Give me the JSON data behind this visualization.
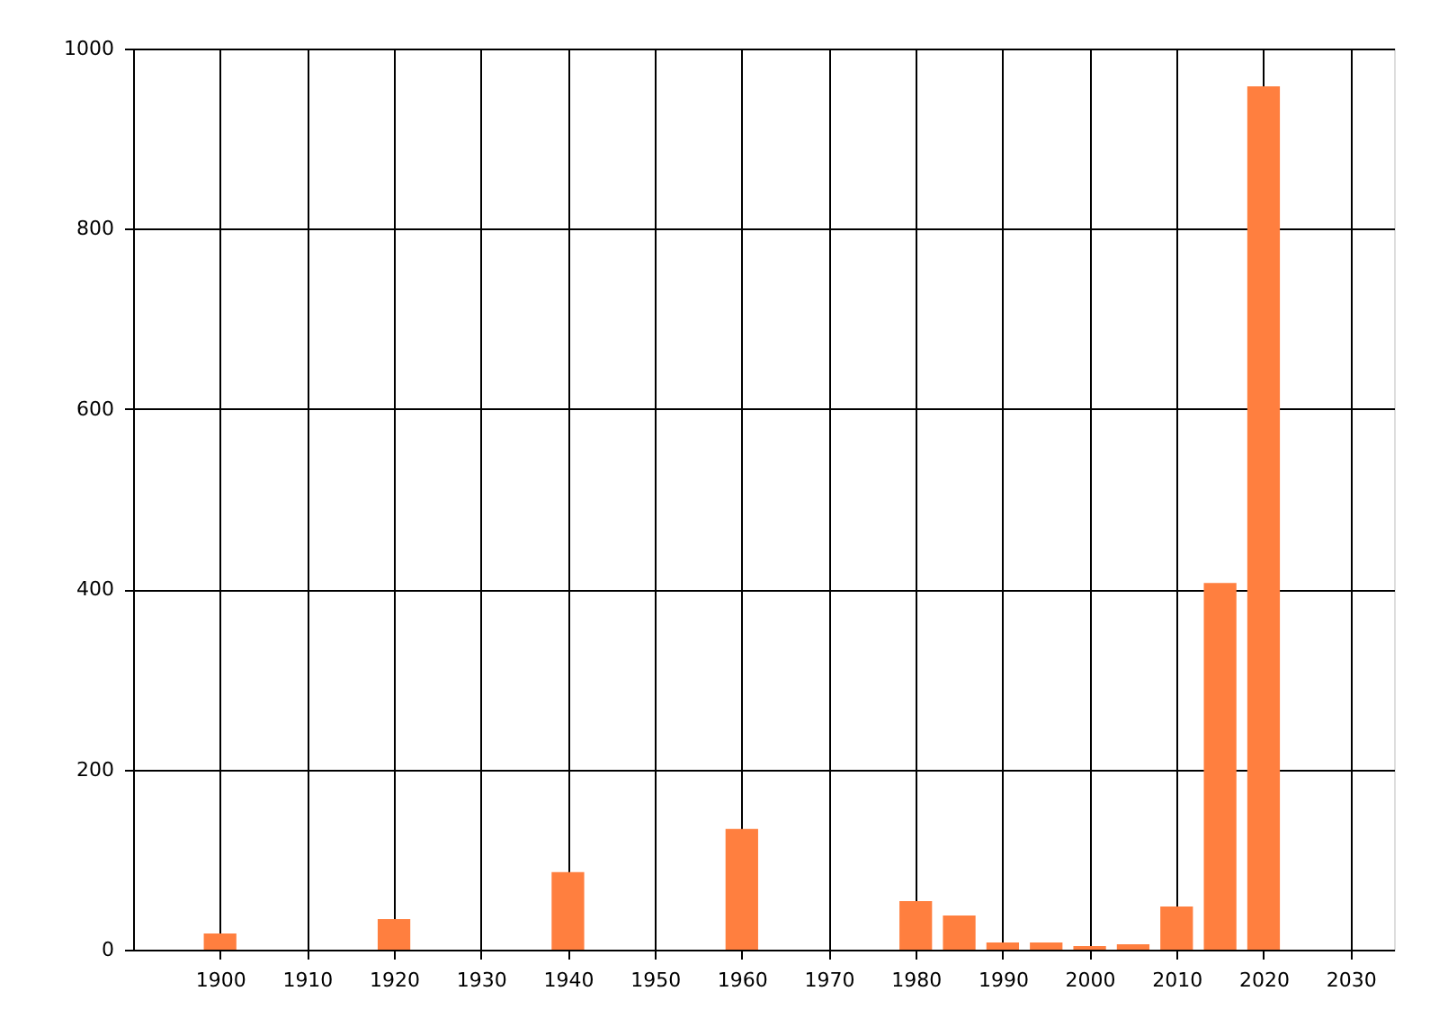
{
  "chart_data": {
    "type": "bar",
    "x": [
      1900,
      1920,
      1940,
      1960,
      1980,
      1985,
      1990,
      1995,
      2000,
      2005,
      2010,
      2015,
      2020
    ],
    "values": [
      18,
      34,
      86,
      134,
      54,
      38,
      8,
      8,
      4,
      6,
      48,
      407,
      958
    ],
    "color": "#ff7f3f",
    "xlim": [
      1890,
      2035
    ],
    "xticks": [
      1900,
      1910,
      1920,
      1930,
      1940,
      1950,
      1960,
      1970,
      1980,
      1990,
      2000,
      2010,
      2020,
      2030
    ],
    "ylim": [
      0,
      1000
    ],
    "yticks": [
      0,
      200,
      400,
      600,
      800,
      1000
    ],
    "grid": true
  }
}
